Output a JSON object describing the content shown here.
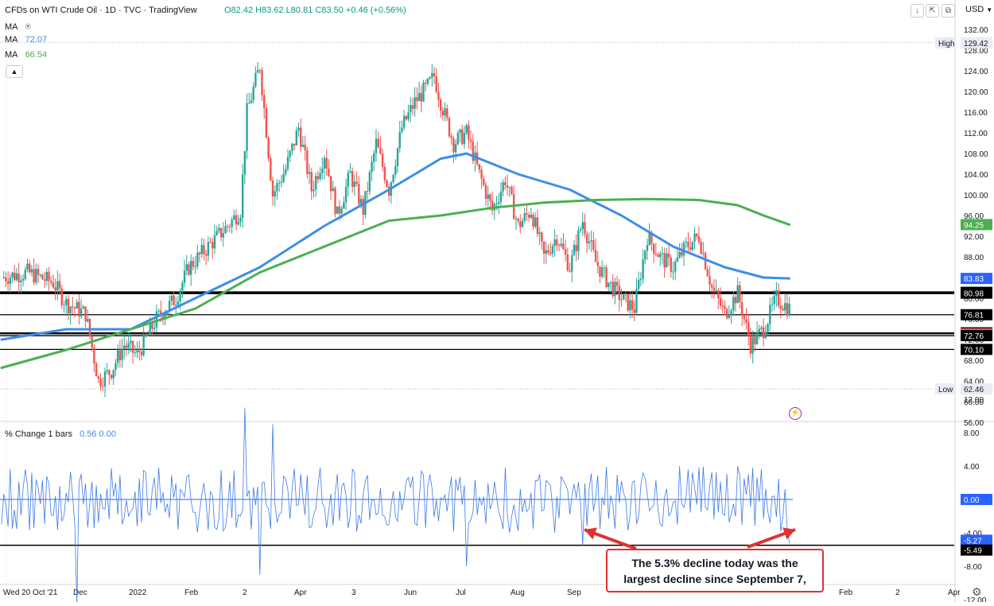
{
  "header": {
    "symbol_title": "CFDs on WTI Crude Oil · 1D · TVC · TradingView",
    "ohlc": "O82.42 H83.62 L80.81 C83.50 +0.46 (+0.56%)",
    "currency": "USD"
  },
  "legend": {
    "ma1_label": "MA",
    "ma1_value": "",
    "ma2_label": "MA",
    "ma2_value": "72.07",
    "ma3_label": "MA",
    "ma3_value": "66.54",
    "ma2_color": "#3d8ee8",
    "ma3_color": "#4caf50"
  },
  "indicator": {
    "title": "% Change 1 bars",
    "values": "0.56  0.00"
  },
  "annotation": {
    "text_line1": "The 5.3% decline today was the",
    "text_line2": "largest decline since September 7,"
  },
  "chart_data": [
    {
      "type": "candlestick",
      "title": "CFDs on WTI Crude Oil · 1D · TVC",
      "y_ticks": [
        "132.00",
        "128.00",
        "124.00",
        "120.00",
        "116.00",
        "112.00",
        "108.00",
        "104.00",
        "100.00",
        "96.00",
        "92.00",
        "88.00",
        "84.00",
        "80.00",
        "76.00",
        "72.00",
        "68.00",
        "64.00",
        "60.00",
        "56.00"
      ],
      "x_ticks": [
        "Wed 20 Oct '21",
        "Dec",
        "2022",
        "Feb",
        "2",
        "Apr",
        "3",
        "Jun",
        "Jul",
        "Aug",
        "Sep",
        "Feb",
        "2",
        "Apr"
      ],
      "ylim": [
        56,
        133
      ],
      "horizontal_levels": [
        81.14,
        80.98,
        76.81,
        73.31,
        73.11,
        72.76,
        70.1
      ],
      "price_labels": [
        {
          "text": "129.42",
          "value": 129.42,
          "tag": "High",
          "style": "plain"
        },
        {
          "text": "94.25",
          "value": 94.25,
          "style": "green"
        },
        {
          "text": "83.83",
          "value": 83.83,
          "style": "blue"
        },
        {
          "text": "81.14",
          "value": 81.14,
          "style": "black"
        },
        {
          "text": "80.98",
          "value": 80.98,
          "style": "black"
        },
        {
          "text": "76.81",
          "value": 76.81,
          "style": "black"
        },
        {
          "text": "73.31",
          "value": 73.31,
          "style": "black"
        },
        {
          "text": "73.11",
          "value": 73.11,
          "style": "red"
        },
        {
          "text": "72.76",
          "value": 72.76,
          "style": "black"
        },
        {
          "text": "70.10",
          "value": 70.1,
          "style": "black"
        },
        {
          "text": "62.46",
          "value": 62.46,
          "tag": "Low",
          "style": "plain"
        }
      ],
      "price_path": [
        [
          0,
          84
        ],
        [
          4,
          85
        ],
        [
          8,
          83
        ],
        [
          10,
          79
        ],
        [
          13,
          77
        ],
        [
          15,
          64
        ],
        [
          17,
          66
        ],
        [
          19,
          71
        ],
        [
          21,
          69
        ],
        [
          24,
          76
        ],
        [
          27,
          80
        ],
        [
          29,
          86
        ],
        [
          32,
          90
        ],
        [
          35,
          94
        ],
        [
          37,
          97
        ],
        [
          38,
          116
        ],
        [
          40,
          125
        ],
        [
          42,
          100
        ],
        [
          44,
          105
        ],
        [
          46,
          113
        ],
        [
          48,
          101
        ],
        [
          50,
          108
        ],
        [
          52,
          96
        ],
        [
          54,
          104
        ],
        [
          56,
          97
        ],
        [
          58,
          110
        ],
        [
          60,
          101
        ],
        [
          62,
          113
        ],
        [
          64,
          118
        ],
        [
          66,
          121
        ],
        [
          67,
          123
        ],
        [
          68,
          118
        ],
        [
          70,
          110
        ],
        [
          72,
          112
        ],
        [
          74,
          104
        ],
        [
          76,
          97
        ],
        [
          78,
          103
        ],
        [
          80,
          94
        ],
        [
          82,
          97
        ],
        [
          84,
          88
        ],
        [
          86,
          92
        ],
        [
          88,
          86
        ],
        [
          90,
          95
        ],
        [
          92,
          87
        ],
        [
          94,
          83
        ],
        [
          96,
          80
        ],
        [
          98,
          78
        ],
        [
          100,
          92
        ],
        [
          102,
          88
        ],
        [
          104,
          86
        ],
        [
          106,
          90
        ],
        [
          108,
          92
        ],
        [
          110,
          82
        ],
        [
          112,
          77
        ],
        [
          114,
          81
        ],
        [
          116,
          71
        ],
        [
          118,
          74
        ],
        [
          120,
          80
        ],
        [
          122,
          78
        ]
      ],
      "series": [
        {
          "name": "MA",
          "color": "#3d8ee8",
          "points": [
            [
              0,
              72
            ],
            [
              10,
              74
            ],
            [
              20,
              74
            ],
            [
              30,
              80
            ],
            [
              40,
              86
            ],
            [
              50,
              94
            ],
            [
              60,
              101
            ],
            [
              68,
              107
            ],
            [
              72,
              108
            ],
            [
              80,
              104
            ],
            [
              88,
              101
            ],
            [
              96,
              96
            ],
            [
              104,
              90
            ],
            [
              112,
              86
            ],
            [
              118,
              84
            ],
            [
              122,
              83.83
            ]
          ]
        },
        {
          "name": "MA",
          "color": "#4caf50",
          "points": [
            [
              0,
              66.54
            ],
            [
              10,
              70
            ],
            [
              20,
              74
            ],
            [
              30,
              78
            ],
            [
              40,
              85
            ],
            [
              50,
              90
            ],
            [
              60,
              95
            ],
            [
              68,
              96
            ],
            [
              76,
              97.5
            ],
            [
              84,
              98.5
            ],
            [
              92,
              99
            ],
            [
              100,
              99.2
            ],
            [
              108,
              99
            ],
            [
              114,
              98
            ],
            [
              118,
              96
            ],
            [
              122,
              94.25
            ]
          ]
        }
      ]
    },
    {
      "type": "line",
      "title": "% Change 1 bars",
      "y_ticks": [
        "12.00",
        "8.00",
        "4.00",
        "-4.00",
        "-8.00",
        "-12.00"
      ],
      "ylim": [
        -13.5,
        13
      ],
      "zero_label": "0.00",
      "horizontal_levels": [
        -5.49
      ],
      "price_labels": [
        {
          "text": "0.00",
          "value": 0,
          "style": "blue"
        },
        {
          "text": "-5.27",
          "value": -5.27,
          "style": "blue"
        },
        {
          "text": "-5.49",
          "value": -5.49,
          "style": "black"
        }
      ],
      "notable_points": [
        [
          11.5,
          -12.5
        ],
        [
          37.5,
          11
        ],
        [
          40,
          -9
        ],
        [
          42,
          9
        ],
        [
          72,
          -8
        ],
        [
          90,
          -5.49
        ],
        [
          122,
          -5.27
        ]
      ]
    }
  ]
}
